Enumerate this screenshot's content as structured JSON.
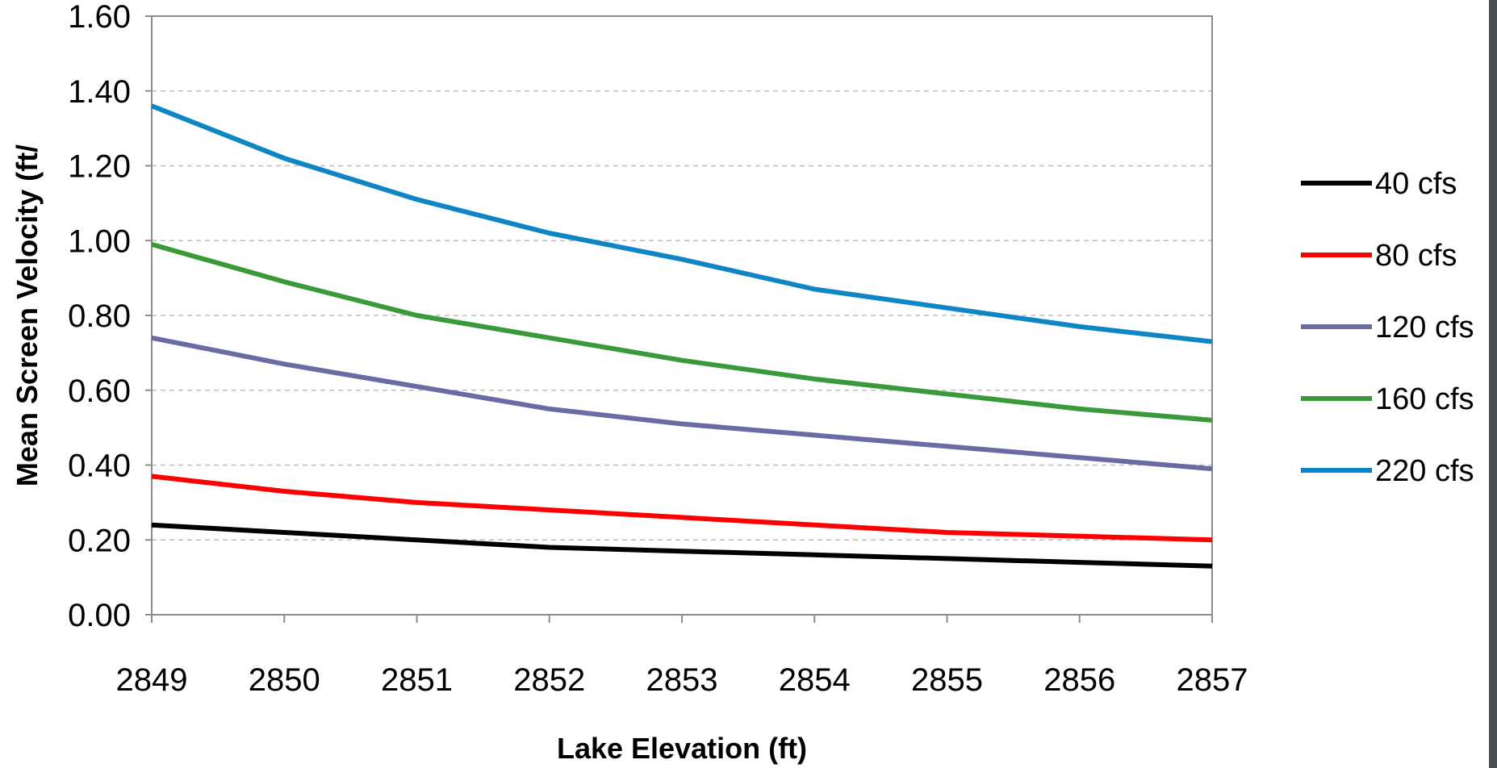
{
  "chart_data": {
    "type": "line",
    "title": "",
    "xlabel": "Lake Elevation (ft)",
    "ylabel": "Mean Screen Velocity (ft/",
    "x": [
      2849,
      2850,
      2851,
      2852,
      2853,
      2854,
      2855,
      2856,
      2857
    ],
    "x_tick_labels": [
      "2849",
      "2850",
      "2851",
      "2852",
      "2853",
      "2854",
      "2855",
      "2856",
      "2857"
    ],
    "ylim": [
      0,
      1.6
    ],
    "y_ticks": [
      0,
      0.2,
      0.4,
      0.6,
      0.8,
      1.0,
      1.2,
      1.4,
      1.6
    ],
    "y_tick_labels": [
      "0.00",
      "0.20",
      "0.40",
      "0.60",
      "0.80",
      "1.00",
      "1.20",
      "1.40",
      "1.60"
    ],
    "grid": "horizontal-dashed",
    "legend_position": "right",
    "series": [
      {
        "name": "40 cfs",
        "color": "#000000",
        "values": [
          0.24,
          0.22,
          0.2,
          0.18,
          0.17,
          0.16,
          0.15,
          0.14,
          0.13
        ]
      },
      {
        "name": "80 cfs",
        "color": "#ff0000",
        "values": [
          0.37,
          0.33,
          0.3,
          0.28,
          0.26,
          0.24,
          0.22,
          0.21,
          0.2
        ]
      },
      {
        "name": "120 cfs",
        "color": "#6b6ba3",
        "values": [
          0.74,
          0.67,
          0.61,
          0.55,
          0.51,
          0.48,
          0.45,
          0.42,
          0.39
        ]
      },
      {
        "name": "160 cfs",
        "color": "#3a9a3a",
        "values": [
          0.99,
          0.89,
          0.8,
          0.74,
          0.68,
          0.63,
          0.59,
          0.55,
          0.52
        ]
      },
      {
        "name": "220 cfs",
        "color": "#0e86c6",
        "values": [
          1.36,
          1.22,
          1.11,
          1.02,
          0.95,
          0.87,
          0.82,
          0.77,
          0.73
        ]
      }
    ]
  }
}
